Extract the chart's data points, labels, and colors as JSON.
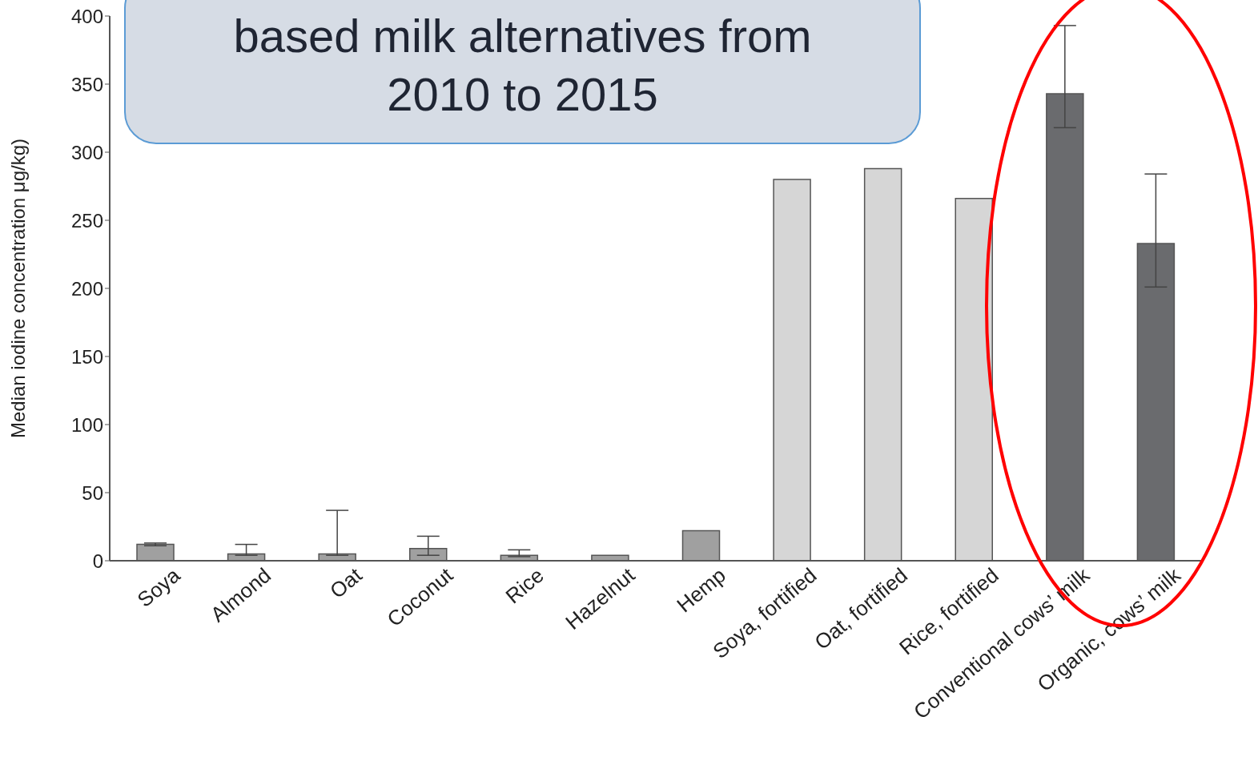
{
  "chart_data": {
    "type": "bar",
    "title": "based milk alternatives from 2010 to 2015",
    "ylabel": "Median iodine concentration μg/kg)",
    "categories": [
      "Soya",
      "Almond",
      "Oat",
      "Coconut",
      "Rice",
      "Hazelnut",
      "Hemp",
      "Soya, fortified",
      "Oat, fortified",
      "Rice, fortified",
      "Conventional cows’ milk",
      "Organic, cows’ milk"
    ],
    "values": [
      12,
      5,
      5,
      9,
      4,
      4,
      22,
      280,
      288,
      266,
      343,
      233
    ],
    "colors": [
      "#a0a0a0",
      "#a0a0a0",
      "#a0a0a0",
      "#a0a0a0",
      "#a0a0a0",
      "#a0a0a0",
      "#a0a0a0",
      "#d6d6d6",
      "#d6d6d6",
      "#d6d6d6",
      "#6a6b6e",
      "#6a6b6e"
    ],
    "errors": [
      [
        11,
        13
      ],
      [
        4,
        12
      ],
      [
        4,
        37
      ],
      [
        4,
        18
      ],
      [
        3,
        8
      ],
      null,
      null,
      null,
      null,
      null,
      [
        318,
        393
      ],
      [
        201,
        284
      ]
    ],
    "ylim": [
      0,
      400
    ],
    "yticks": [
      0,
      50,
      100,
      150,
      200,
      250,
      300,
      350,
      400
    ],
    "grid": false,
    "legend": false
  }
}
